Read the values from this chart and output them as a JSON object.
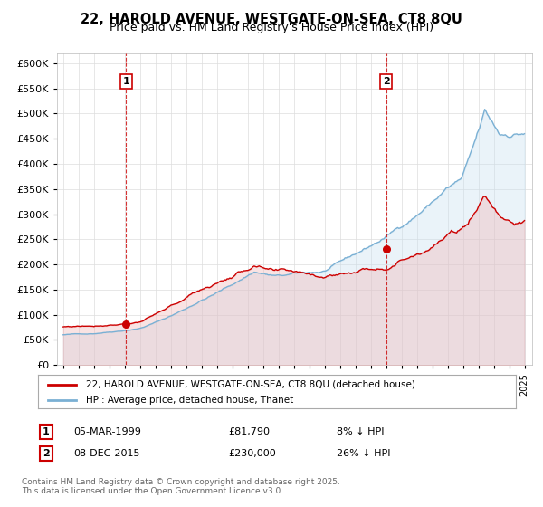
{
  "title": "22, HAROLD AVENUE, WESTGATE-ON-SEA, CT8 8QU",
  "subtitle": "Price paid vs. HM Land Registry's House Price Index (HPI)",
  "legend_line1": "22, HAROLD AVENUE, WESTGATE-ON-SEA, CT8 8QU (detached house)",
  "legend_line2": "HPI: Average price, detached house, Thanet",
  "sale_color": "#cc0000",
  "hpi_color": "#7ab0d4",
  "hpi_fill_color": "#c5dff0",
  "sale_fill_color": "#f0b0b0",
  "marker_edge_color": "#cc0000",
  "idx1": 49,
  "price1": 81790,
  "idx2": 252,
  "price2": 230000,
  "footer": "Contains HM Land Registry data © Crown copyright and database right 2025.\nThis data is licensed under the Open Government Licence v3.0.",
  "background_color": "#ffffff",
  "grid_color": "#dddddd"
}
